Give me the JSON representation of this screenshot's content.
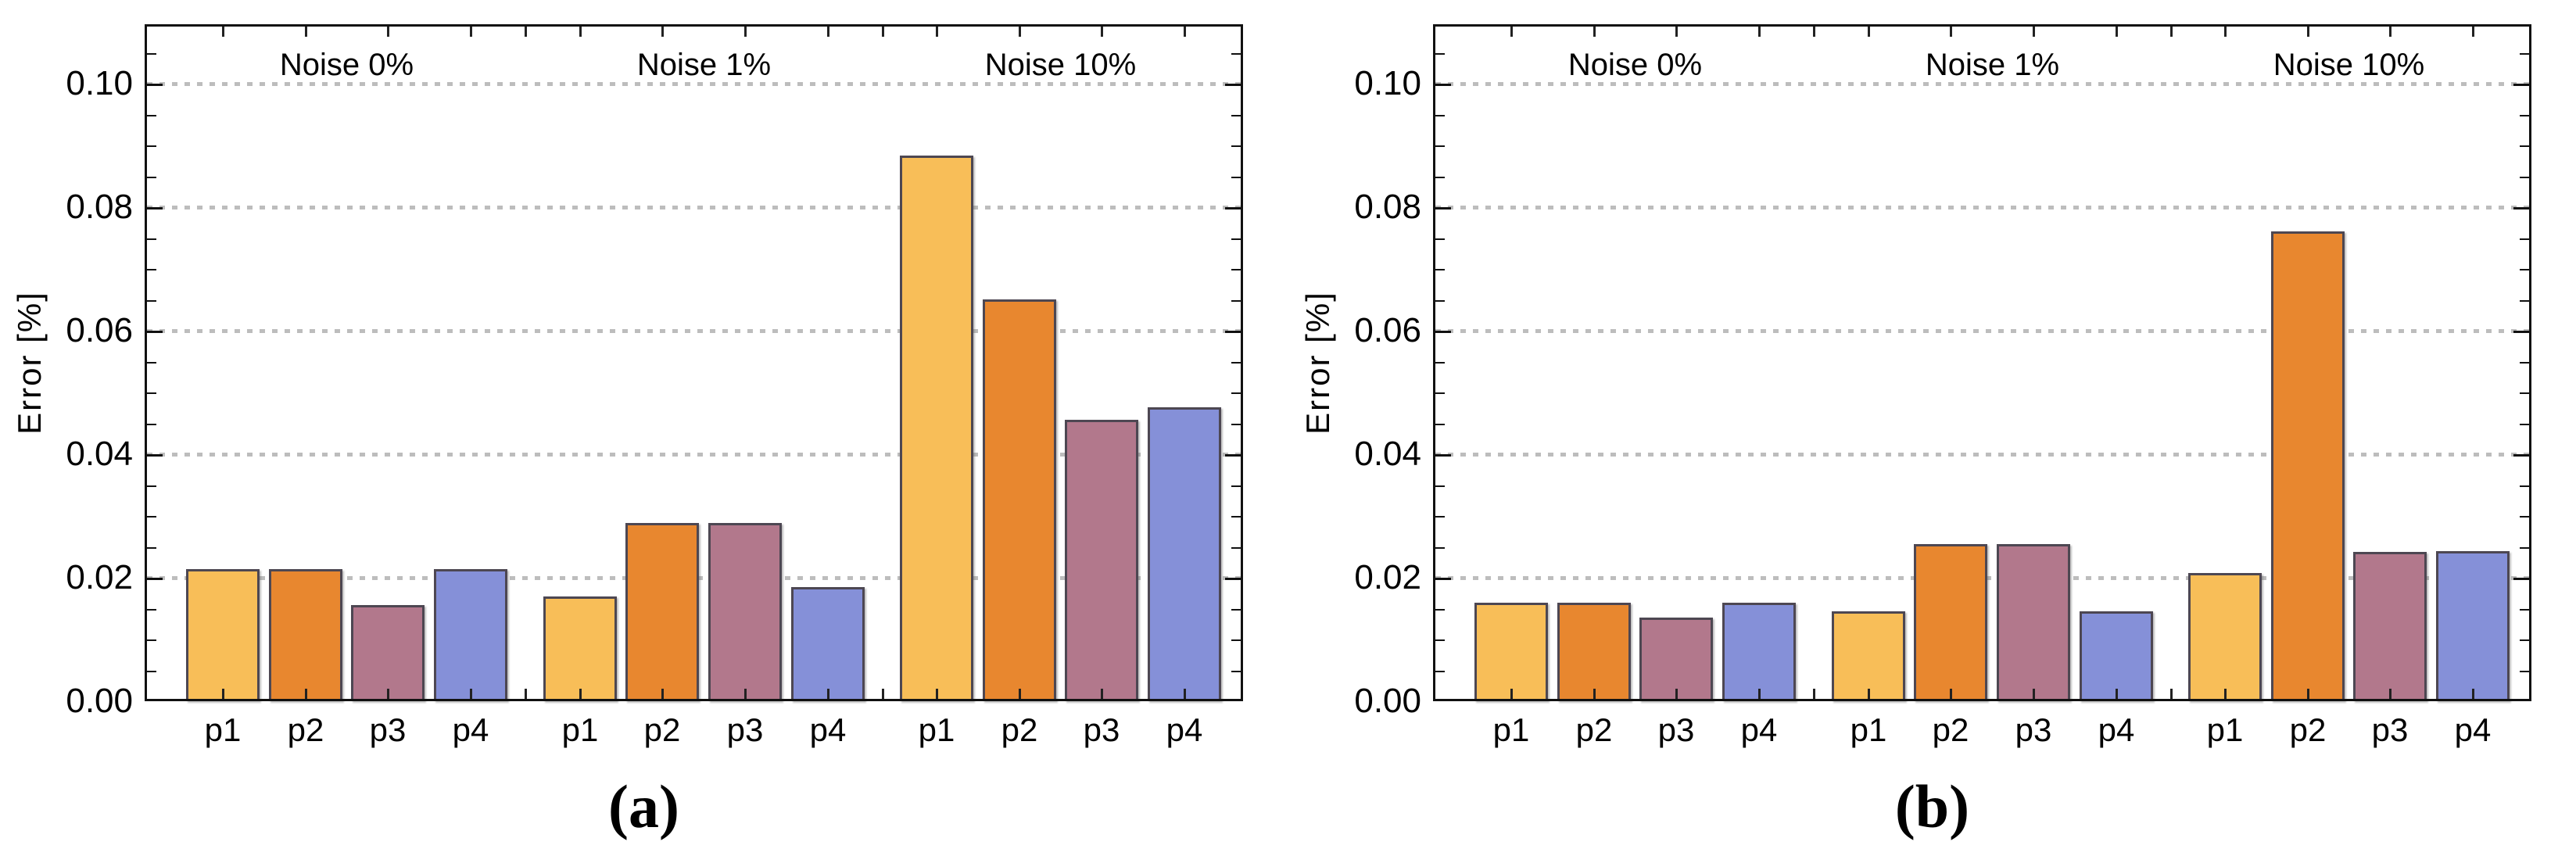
{
  "figure": {
    "background": "#ffffff"
  },
  "chart_data": [
    {
      "panel": "a",
      "type": "bar",
      "caption": "(a)",
      "ylabel": "Error [%]",
      "ylim": [
        0,
        0.1096
      ],
      "ytick_values": [
        0,
        0.02,
        0.04,
        0.06,
        0.08,
        0.1
      ],
      "ytick_labels": [
        "0.00",
        "0.02",
        "0.04",
        "0.06",
        "0.08",
        "0.10"
      ],
      "minor_tick_step": 0.005,
      "grid": {
        "style": "dotted",
        "color": "#bdbdbd",
        "at": [
          0.02,
          0.04,
          0.06,
          0.08,
          0.1
        ]
      },
      "legend_position": "none",
      "bar_colors": {
        "p1": "#F8BE58",
        "p2": "#E8872F",
        "p3": "#B2788C",
        "p4": "#8590D8"
      },
      "bar_edge_color": "#4D4752",
      "groups": [
        {
          "label": "Noise 0%",
          "categories": [
            "p1",
            "p2",
            "p3",
            "p4"
          ],
          "values": [
            0.0214,
            0.0214,
            0.0156,
            0.0214
          ]
        },
        {
          "label": "Noise 1%",
          "categories": [
            "p1",
            "p2",
            "p3",
            "p4"
          ],
          "values": [
            0.0169,
            0.0288,
            0.0288,
            0.0185
          ]
        },
        {
          "label": "Noise 10%",
          "categories": [
            "p1",
            "p2",
            "p3",
            "p4"
          ],
          "values": [
            0.0883,
            0.065,
            0.0456,
            0.0476
          ]
        }
      ]
    },
    {
      "panel": "b",
      "type": "bar",
      "caption": "(b)",
      "ylabel": "Error [%]",
      "ylim": [
        0,
        0.1096
      ],
      "ytick_values": [
        0,
        0.02,
        0.04,
        0.06,
        0.08,
        0.1
      ],
      "ytick_labels": [
        "0.00",
        "0.02",
        "0.04",
        "0.06",
        "0.08",
        "0.10"
      ],
      "minor_tick_step": 0.005,
      "grid": {
        "style": "dotted",
        "color": "#bdbdbd",
        "at": [
          0.02,
          0.04,
          0.06,
          0.08,
          0.1
        ]
      },
      "legend_position": "none",
      "bar_colors": {
        "p1": "#F8BE58",
        "p2": "#E8872F",
        "p3": "#B2788C",
        "p4": "#8590D8"
      },
      "bar_edge_color": "#4D4752",
      "groups": [
        {
          "label": "Noise 0%",
          "categories": [
            "p1",
            "p2",
            "p3",
            "p4"
          ],
          "values": [
            0.016,
            0.016,
            0.0135,
            0.016
          ]
        },
        {
          "label": "Noise 1%",
          "categories": [
            "p1",
            "p2",
            "p3",
            "p4"
          ],
          "values": [
            0.0145,
            0.0254,
            0.0254,
            0.0145
          ]
        },
        {
          "label": "Noise 10%",
          "categories": [
            "p1",
            "p2",
            "p3",
            "p4"
          ],
          "values": [
            0.0207,
            0.0761,
            0.0242,
            0.0243
          ]
        }
      ]
    }
  ]
}
